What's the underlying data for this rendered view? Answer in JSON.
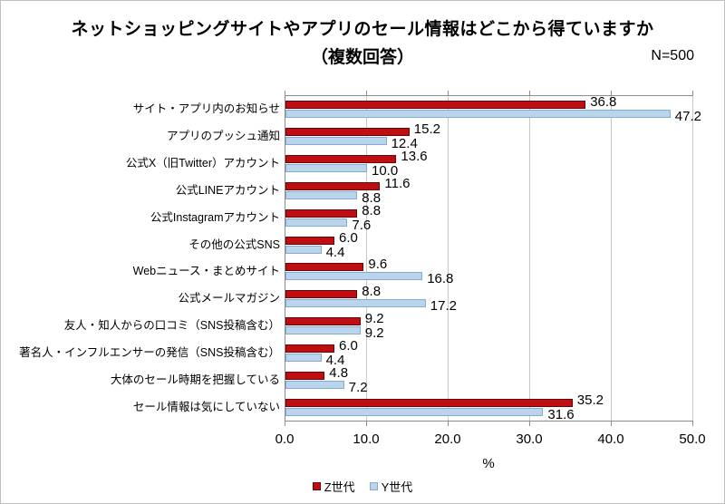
{
  "header": {
    "title": "ネットショッピングサイトやアプリのセール情報はどこから得ていますか",
    "subtitle": "（複数回答）",
    "sample_size": "N=500"
  },
  "chart_data": {
    "type": "bar",
    "orientation": "horizontal",
    "title": "ネットショッピングサイトやアプリのセール情報はどこから得ていますか（複数回答）",
    "categories": [
      "サイト・アプリ内のお知らせ",
      "アプリのプッシュ通知",
      "公式X（旧Twitter）アカウント",
      "公式LINEアカウント",
      "公式Instagramアカウント",
      "その他の公式SNS",
      "Webニュース・まとめサイト",
      "公式メールマガジン",
      "友人・知人からの口コミ（SNS投稿含む）",
      "著名人・インフルエンサーの発信（SNS投稿含む）",
      "大体のセール時期を把握している",
      "セール情報は気にしていない"
    ],
    "series": [
      {
        "name": "Z世代",
        "color": "#be0e11",
        "border_color": "#6b0407",
        "values": [
          36.8,
          15.2,
          13.6,
          11.6,
          8.8,
          6.0,
          9.6,
          8.8,
          9.2,
          6.0,
          4.8,
          35.2
        ]
      },
      {
        "name": "Y世代",
        "color": "#bad4ec",
        "border_color": "#84abd3",
        "values": [
          47.2,
          12.4,
          10.0,
          8.8,
          7.6,
          4.4,
          16.8,
          17.2,
          9.2,
          4.4,
          7.2,
          31.6
        ]
      }
    ],
    "xlim": [
      0,
      50
    ],
    "xticks": [
      0,
      10,
      20,
      30,
      40,
      50
    ],
    "xtick_labels": [
      "0.0",
      "10.0",
      "20.0",
      "30.0",
      "40.0",
      "50.0"
    ],
    "xlabel": "%",
    "grid": true,
    "legend_position": "bottom",
    "value_label_decimals": 1
  },
  "colors": {
    "grid": "#c9c9c9",
    "axis": "#8c8c8c",
    "frame": "#bfbfbf",
    "text": "#000000"
  }
}
